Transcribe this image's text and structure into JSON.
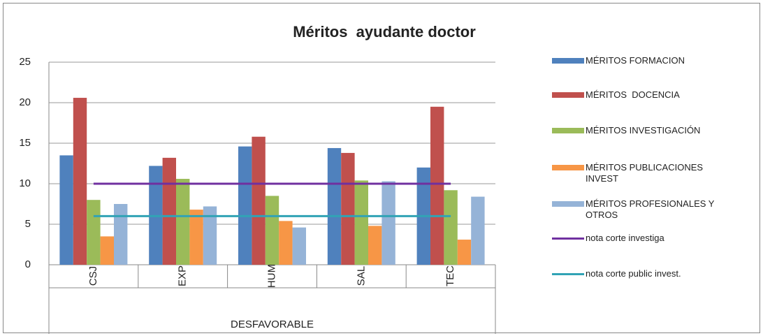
{
  "chart_data": {
    "type": "bar",
    "title": "Méritos  ayudante doctor",
    "categories": [
      "CSJ",
      "EXP",
      "HUM",
      "SAL",
      "TEC"
    ],
    "group": "DESFAVORABLE",
    "series": [
      {
        "name": "MÉRITOS FORMACION",
        "color": "#4f81bd",
        "values": [
          13.5,
          12.2,
          14.6,
          14.4,
          12.0
        ]
      },
      {
        "name": "MÉRITOS  DOCENCIA",
        "color": "#c0504d",
        "values": [
          20.6,
          13.2,
          15.8,
          13.8,
          19.5
        ]
      },
      {
        "name": "MÉRITOS INVESTIGACIÓN",
        "color": "#9bbb59",
        "values": [
          8.0,
          10.6,
          8.5,
          10.4,
          9.2
        ]
      },
      {
        "name": "MÉRITOS PUBLICACIONES INVEST",
        "color": "#f79646",
        "values": [
          3.5,
          6.8,
          5.4,
          4.8,
          3.1
        ]
      },
      {
        "name": "MÉRITOS PROFESIONALES Y OTROS",
        "color": "#95b3d7",
        "values": [
          7.5,
          7.2,
          4.6,
          10.3,
          8.4
        ]
      },
      {
        "name": "nota corte investiga",
        "color": "#7030a0",
        "type": "line",
        "values": [
          10,
          10,
          10,
          10,
          10
        ]
      },
      {
        "name": "nota corte public invest.",
        "color": "#31a3b5",
        "type": "line",
        "values": [
          6,
          6,
          6,
          6,
          6
        ]
      }
    ],
    "ylim": [
      0,
      25
    ],
    "yticks": [
      0,
      5,
      10,
      15,
      20,
      25
    ],
    "grid": true,
    "legend": "right"
  }
}
